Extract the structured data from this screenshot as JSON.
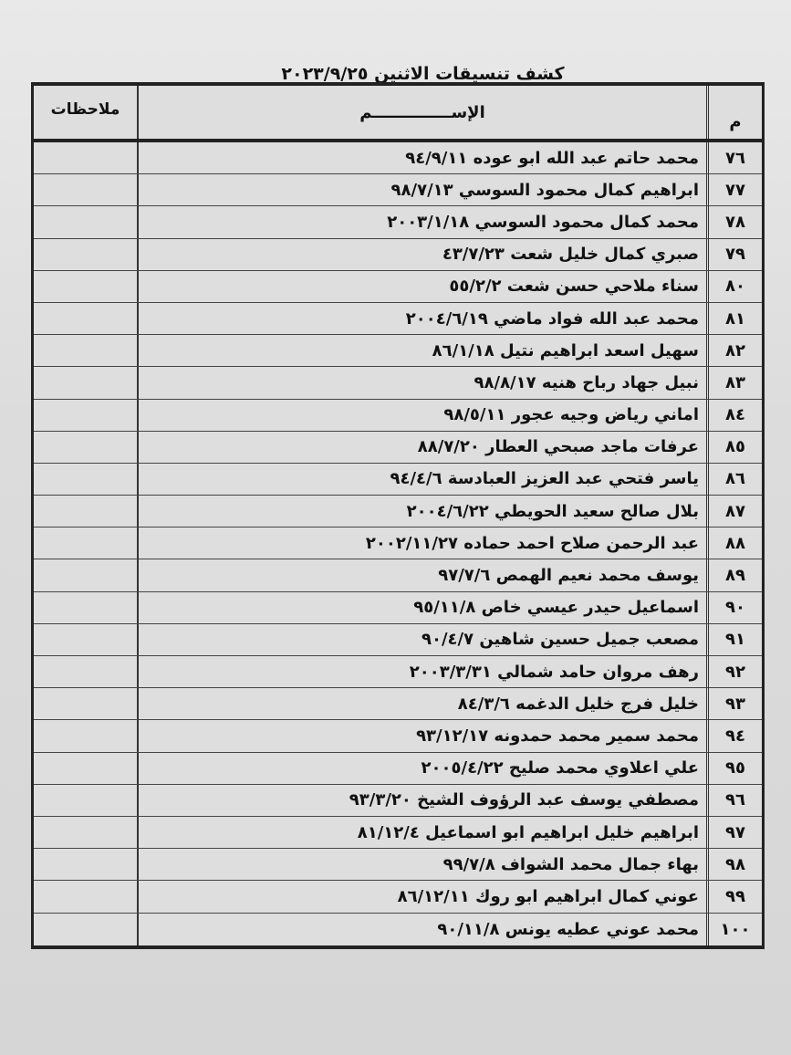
{
  "document": {
    "title": "كشف تنسيقات الاثنين ٢٠٢٣/٩/٢٥",
    "headers": {
      "number": "م",
      "name": "الإســــــــــــــم",
      "notes": "ملاحظات"
    },
    "rows": [
      {
        "number": "٧٦",
        "name": "محمد حاتم عبد الله ابو عوده ٩٤/٩/١١",
        "notes": ""
      },
      {
        "number": "٧٧",
        "name": "ابراهيم كمال محمود السوسي ٩٨/٧/١٣",
        "notes": ""
      },
      {
        "number": "٧٨",
        "name": "محمد كمال محمود السوسي ٢٠٠٣/١/١٨",
        "notes": ""
      },
      {
        "number": "٧٩",
        "name": "صبري كمال خليل شعت ٤٣/٧/٢٣",
        "notes": ""
      },
      {
        "number": "٨٠",
        "name": "سناء ملاحي حسن شعت ٥٥/٢/٢",
        "notes": ""
      },
      {
        "number": "٨١",
        "name": "محمد عبد الله فواد ماضي ٢٠٠٤/٦/١٩",
        "notes": ""
      },
      {
        "number": "٨٢",
        "name": "سهيل اسعد ابراهيم نتيل ٨٦/١/١٨",
        "notes": ""
      },
      {
        "number": "٨٣",
        "name": "نبيل جهاد رباح هنيه ٩٨/٨/١٧",
        "notes": ""
      },
      {
        "number": "٨٤",
        "name": "اماني رياض وجيه عجور ٩٨/٥/١١",
        "notes": ""
      },
      {
        "number": "٨٥",
        "name": "عرفات ماجد صبحي العطار ٨٨/٧/٢٠",
        "notes": ""
      },
      {
        "number": "٨٦",
        "name": "ياسر فتحي عبد العزيز العبادسة ٩٤/٤/٦",
        "notes": ""
      },
      {
        "number": "٨٧",
        "name": "بلال صالح سعيد الحويطي ٢٠٠٤/٦/٢٢",
        "notes": ""
      },
      {
        "number": "٨٨",
        "name": "عبد الرحمن صلاح احمد حماده ٢٠٠٢/١١/٢٧",
        "notes": ""
      },
      {
        "number": "٨٩",
        "name": "يوسف محمد نعيم الهمص ٩٧/٧/٦",
        "notes": ""
      },
      {
        "number": "٩٠",
        "name": "اسماعيل حيدر عيسي خاص ٩٥/١١/٨",
        "notes": ""
      },
      {
        "number": "٩١",
        "name": "مصعب جميل حسين شاهين ٩٠/٤/٧",
        "notes": ""
      },
      {
        "number": "٩٢",
        "name": "رهف مروان حامد شمالي ٢٠٠٣/٣/٣١",
        "notes": ""
      },
      {
        "number": "٩٣",
        "name": "خليل فرج خليل الدغمه ٨٤/٣/٦",
        "notes": ""
      },
      {
        "number": "٩٤",
        "name": "محمد سمير محمد حمدونه ٩٣/١٢/١٧",
        "notes": ""
      },
      {
        "number": "٩٥",
        "name": "علي اعلاوي محمد صليح ٢٠٠٥/٤/٢٢",
        "notes": ""
      },
      {
        "number": "٩٦",
        "name": "مصطفي يوسف عبد الرؤوف الشيخ ٩٣/٣/٢٠",
        "notes": ""
      },
      {
        "number": "٩٧",
        "name": "ابراهيم خليل ابراهيم ابو اسماعيل ٨١/١٢/٤",
        "notes": ""
      },
      {
        "number": "٩٨",
        "name": "بهاء جمال محمد الشواف ٩٩/٧/٨",
        "notes": ""
      },
      {
        "number": "٩٩",
        "name": "عوني كمال ابراهيم ابو روك ٨٦/١٢/١١",
        "notes": ""
      },
      {
        "number": "١٠٠",
        "name": "محمد عوني عطيه يونس ٩٠/١١/٨",
        "notes": ""
      }
    ]
  }
}
